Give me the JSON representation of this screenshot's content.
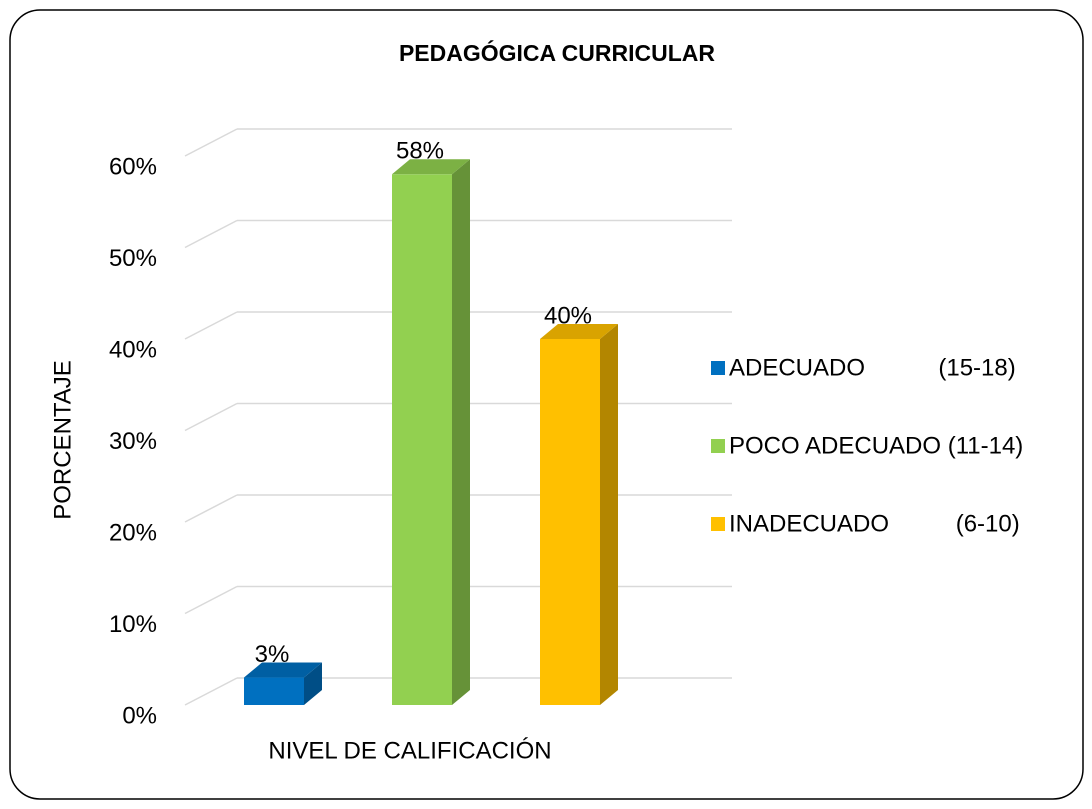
{
  "chart_data": {
    "type": "bar3d",
    "title": "PEDAGÓGICA CURRICULAR",
    "y_label": "PORCENTAJE",
    "categories": [
      "NIVEL DE CALIFICACIÓN"
    ],
    "series": [
      {
        "name": "ADECUADO           (15-18)",
        "color": "#0070c0",
        "values": [
          3
        ],
        "value_labels": [
          "3%"
        ]
      },
      {
        "name": "POCO ADECUADO (11-14)",
        "color": "#92d050",
        "values": [
          58
        ],
        "value_labels": [
          "58%"
        ]
      },
      {
        "name": "INADECUADO          (6-10)",
        "color": "#ffc000",
        "values": [
          40
        ],
        "value_labels": [
          "40%"
        ]
      }
    ],
    "ylim": [
      0,
      60
    ],
    "yticks": [
      {
        "value": 0,
        "label": "0%"
      },
      {
        "value": 10,
        "label": "10%"
      },
      {
        "value": 20,
        "label": "20%"
      },
      {
        "value": 30,
        "label": "30%"
      },
      {
        "value": 40,
        "label": "40%"
      },
      {
        "value": 50,
        "label": "50%"
      },
      {
        "value": 60,
        "label": "60%"
      }
    ],
    "grid": true,
    "legend": "right"
  }
}
